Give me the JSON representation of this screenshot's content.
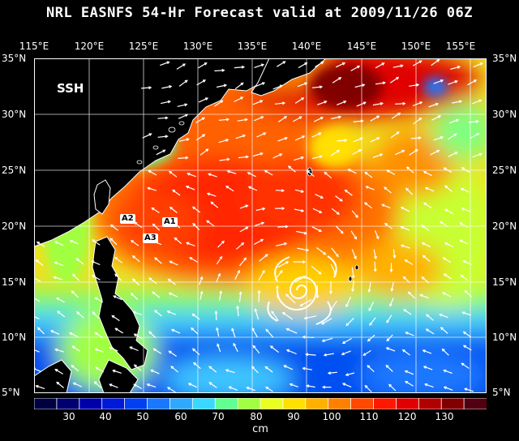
{
  "title": "NRL EASNFS  54-Hr Forecast valid at 2009/11/26 06Z",
  "field_label": "SSH",
  "lon_labels": [
    "115°E",
    "120°E",
    "125°E",
    "130°E",
    "135°E",
    "140°E",
    "145°E",
    "150°E",
    "155°E"
  ],
  "lat_labels": [
    "35°N",
    "30°N",
    "25°N",
    "20°N",
    "15°N",
    "10°N",
    "5°N"
  ],
  "annotations": [
    "A2",
    "A1",
    "A3"
  ],
  "colorbar": {
    "ticks": [
      "30",
      "40",
      "50",
      "60",
      "70",
      "80",
      "90",
      "100",
      "110",
      "120",
      "130"
    ],
    "unit": "cm",
    "colors": [
      "#000040",
      "#00006e",
      "#0000a8",
      "#0018d8",
      "#0040f0",
      "#1a78ff",
      "#30a8ff",
      "#38d8ff",
      "#60ff90",
      "#a0ff40",
      "#e8ff20",
      "#ffe000",
      "#ffb000",
      "#ff8000",
      "#ff4800",
      "#ff1800",
      "#e00000",
      "#b00000",
      "#800000",
      "#500010"
    ]
  },
  "colors": {
    "land": "#000000",
    "coast": "#ffffff",
    "arrow": "#ffffff"
  }
}
